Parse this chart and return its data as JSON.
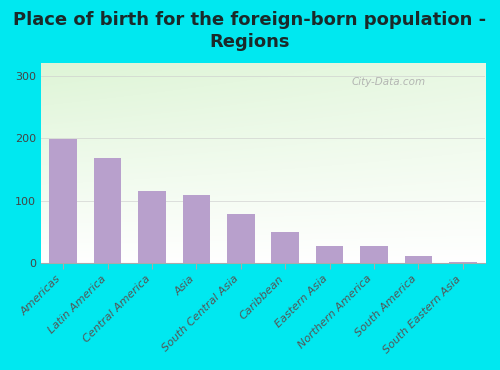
{
  "title": "Place of birth for the foreign-born population -\nRegions",
  "categories": [
    "Americas",
    "Latin America",
    "Central America",
    "Asia",
    "South Central Asia",
    "Caribbean",
    "Eastern Asia",
    "Northern America",
    "South America",
    "South Eastern Asia"
  ],
  "values": [
    199,
    168,
    115,
    109,
    79,
    50,
    28,
    27,
    12,
    2
  ],
  "bar_color": "#b8a0cc",
  "background_color": "#00e8f0",
  "yticks": [
    0,
    100,
    200,
    300
  ],
  "ylim": [
    0,
    320
  ],
  "title_fontsize": 13,
  "tick_fontsize": 8,
  "watermark": "City-Data.com"
}
